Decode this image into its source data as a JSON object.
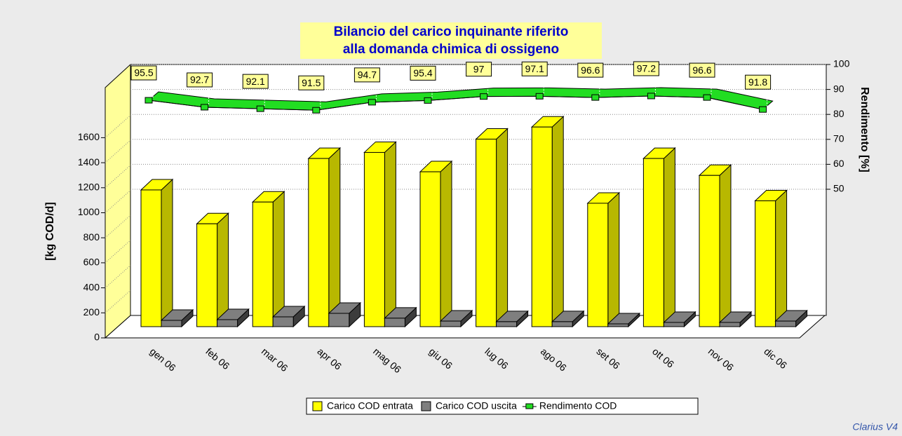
{
  "chart_data": {
    "type": "bar3d-line",
    "title": [
      "Bilancio del carico inquinante riferito",
      "alla domanda chimica di ossigeno"
    ],
    "y_label": "[kg COD/d]",
    "y2_label": "Rendimento [%]",
    "watermark": "Clarius V4",
    "categories": [
      "gen 06",
      "feb 06",
      "mar 06",
      "apr 06",
      "mag 06",
      "giu 06",
      "lug 06",
      "ago 06",
      "set 06",
      "ott 06",
      "nov 06",
      "dic 06"
    ],
    "series": [
      {
        "name": "Carico COD entrata",
        "color": "#ffff00",
        "side": "#b8b800",
        "values": [
          1130,
          850,
          1030,
          1390,
          1440,
          1280,
          1550,
          1650,
          1020,
          1390,
          1250,
          1040
        ]
      },
      {
        "name": "Carico COD uscita",
        "color": "#7f7f7f",
        "side": "#3c3c3c",
        "values": [
          52,
          58,
          81,
          110,
          70,
          46,
          41,
          41,
          23,
          35,
          35,
          46
        ]
      },
      {
        "name": "Rendimento COD",
        "color": "#22dd22",
        "axis": "y2",
        "values": [
          95.5,
          92.7,
          92.1,
          91.5,
          94.7,
          95.4,
          97,
          97.1,
          96.6,
          97.2,
          96.6,
          91.8
        ]
      }
    ],
    "ylim": [
      0,
      2000
    ],
    "yticks": [
      0,
      200,
      400,
      600,
      800,
      1000,
      1200,
      1400,
      1600
    ],
    "y2lim": [
      0,
      100
    ],
    "y2ticks": [
      50,
      60,
      70,
      80,
      90,
      100
    ]
  }
}
